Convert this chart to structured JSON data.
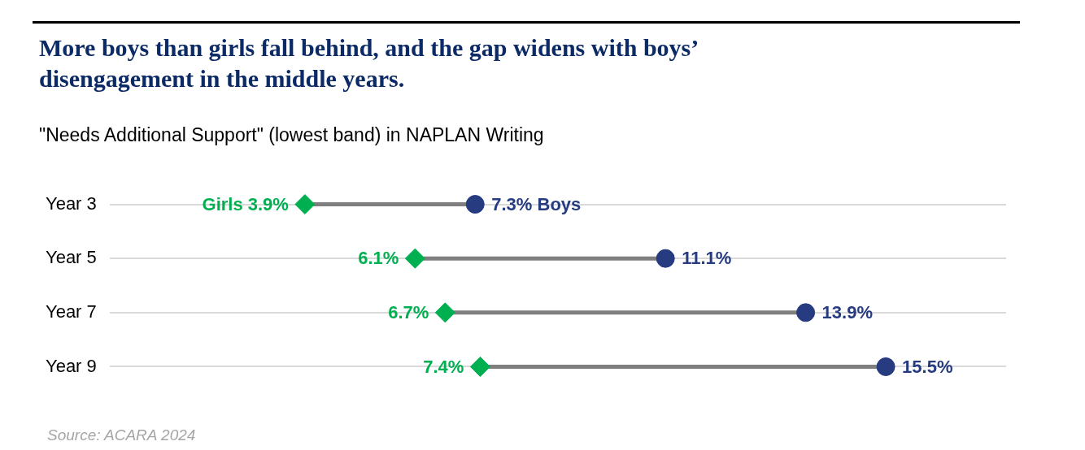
{
  "chart_data": {
    "type": "scatter",
    "orientation": "horizontal",
    "title": "More boys than girls fall behind, and the gap widens with boys’ disengagement in the middle years.",
    "subtitle": "\"Needs Additional Support\" (lowest band) in NAPLAN Writing",
    "categories": [
      "Year 3",
      "Year 5",
      "Year 7",
      "Year 9"
    ],
    "series": [
      {
        "color": "#00b050",
        "marker": "diamond",
        "values": [
          3.9,
          6.1,
          6.7,
          7.4
        ],
        "value_labels": [
          "Girls 3.9%",
          "6.1%",
          "6.7%",
          "7.4%"
        ]
      },
      {
        "color": "#263b80",
        "marker": "circle",
        "values": [
          7.3,
          11.1,
          13.9,
          15.5
        ],
        "value_labels": [
          "7.3% Boys",
          "11.1%",
          "13.9%",
          "15.5%"
        ]
      }
    ],
    "grid": "y",
    "legend": false,
    "tick_labels": "y",
    "annotations": [
      "Source: ACARA 2024"
    ]
  }
}
